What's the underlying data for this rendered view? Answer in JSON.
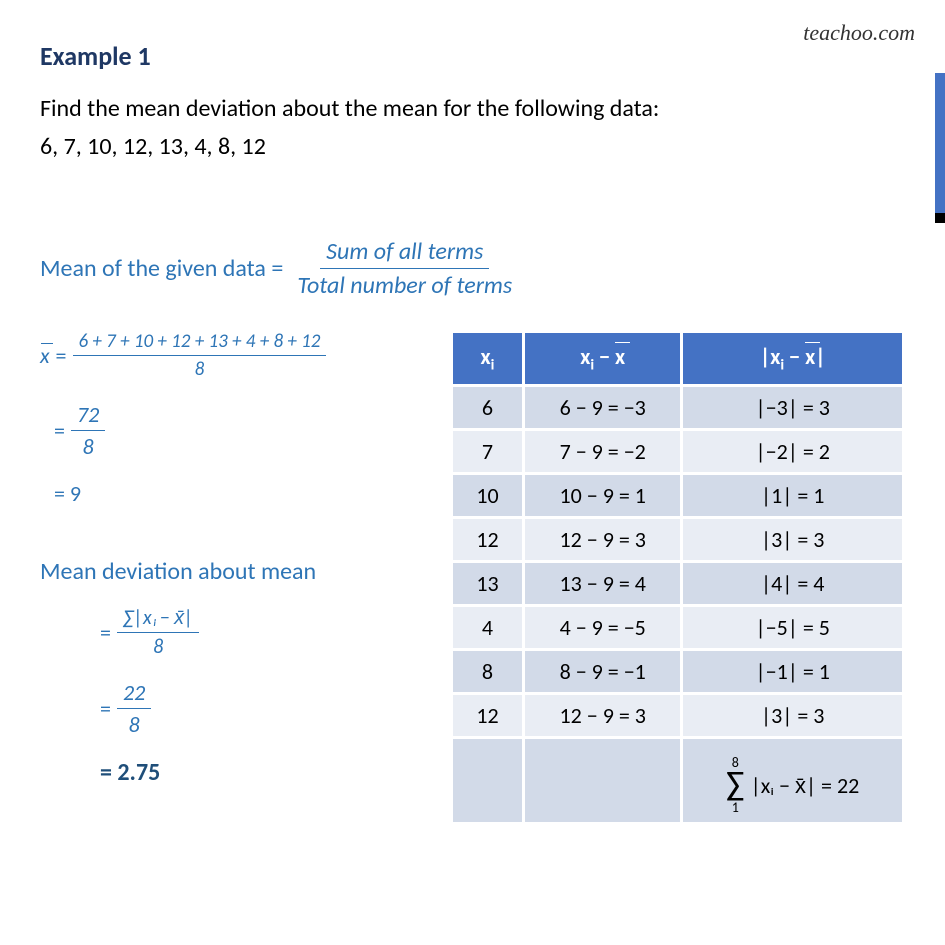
{
  "watermark": "teachoo.com",
  "title": "Example 1",
  "problem_line1": "Find the mean deviation about the mean for the following data:",
  "problem_line2": "6, 7, 10, 12, 13, 4, 8, 12",
  "mean_formula": {
    "label": "Mean of the given data =",
    "numerator": "Sum of all terms",
    "denominator": "Total number of terms"
  },
  "calc": {
    "xbar_label": "x",
    "eq": "=",
    "step1_num": "6 + 7 + 10 + 12 + 13 + 4 + 8 + 12",
    "step1_den": "8",
    "step2_num": "72",
    "step2_den": "8",
    "step3": "= 9"
  },
  "md_heading": "Mean deviation about mean",
  "md_calc": {
    "eq": "=",
    "step1_num": "∑|xᵢ − x̄|",
    "step1_den": "8",
    "step2_num": "22",
    "step2_den": "8",
    "final": "= 2.75"
  },
  "table": {
    "headers": {
      "c1": "xᵢ",
      "c2_pre": "x",
      "c2_sub": "i",
      "c2_minus": " − ",
      "c2_xbar": "x",
      "c3_open": "|x",
      "c3_sub": "i",
      "c3_mid": " − ",
      "c3_xbar": "x",
      "c3_close": "|"
    },
    "rows": [
      {
        "xi": "6",
        "diff": "6 − 9 = −3",
        "abs": "|−3| = 3"
      },
      {
        "xi": "7",
        "diff": "7 − 9 = −2",
        "abs": "|−2| = 2"
      },
      {
        "xi": "10",
        "diff": "10 − 9 = 1",
        "abs": "|1| = 1"
      },
      {
        "xi": "12",
        "diff": "12 − 9 = 3",
        "abs": "|3| = 3"
      },
      {
        "xi": "13",
        "diff": "13 − 9 = 4",
        "abs": "|4| = 4"
      },
      {
        "xi": "4",
        "diff": "4 − 9 = −5",
        "abs": "|−5| = 5"
      },
      {
        "xi": "8",
        "diff": "8 − 9 = −1",
        "abs": "|−1| = 1"
      },
      {
        "xi": "12",
        "diff": "12 − 9  = 3",
        "abs": "|3| = 3"
      }
    ],
    "sum": {
      "upper": "8",
      "lower": "1",
      "expr": "|xᵢ − x̄| = 22"
    }
  },
  "colors": {
    "accent": "#4472c4",
    "header_blue": "#4472c4",
    "row_odd": "#d2dae8",
    "row_even": "#e9edf4",
    "text_blue": "#2e75b6",
    "title_blue": "#1f3864"
  }
}
